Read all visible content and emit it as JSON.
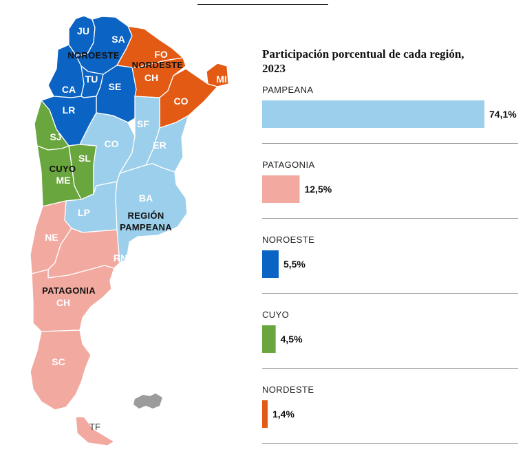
{
  "colors": {
    "pampeana": "#9ccfeb",
    "patagonia": "#f2aaa0",
    "noroeste": "#0b63c4",
    "cuyo": "#6aa63e",
    "nordeste": "#e25a14",
    "islands": "#9c9c9c"
  },
  "map": {
    "region_labels": {
      "noroeste": "NOROESTE",
      "nordeste": "NORDESTE",
      "cuyo": "CUYO",
      "pampeana_line1": "REGIÓN",
      "pampeana_line2": "PAMPEANA",
      "patagonia": "PATAGONIA"
    },
    "province_labels": {
      "ju": "JU",
      "sa": "SA",
      "fo": "FO",
      "ch_n": "CH",
      "mi": "MI",
      "tu": "TU",
      "ca": "CA",
      "se": "SE",
      "co_ne": "CO",
      "lr": "LR",
      "sj": "SJ",
      "sf": "SF",
      "co": "CO",
      "er": "ER",
      "sl": "SL",
      "me": "ME",
      "ba": "BA",
      "lp": "LP",
      "ne": "NE",
      "rn": "RN",
      "ch_s": "CH",
      "sc": "SC",
      "tf": "TF"
    }
  },
  "chart_data": {
    "type": "bar",
    "orientation": "horizontal",
    "title": "Participación porcentual de cada región, 2023",
    "categories": [
      "PAMPEANA",
      "PATAGONIA",
      "NOROESTE",
      "CUYO",
      "NORDESTE"
    ],
    "values": [
      74.1,
      12.5,
      5.5,
      4.5,
      1.4
    ],
    "value_labels": [
      "74,1%",
      "12,5%",
      "5,5%",
      "4,5%",
      "1,4%"
    ],
    "colors": [
      "#9ccfeb",
      "#f2aaa0",
      "#0b63c4",
      "#6aa63e",
      "#e25a14"
    ],
    "xlim": [
      0,
      74.1
    ],
    "grid": false,
    "legend": "none"
  }
}
